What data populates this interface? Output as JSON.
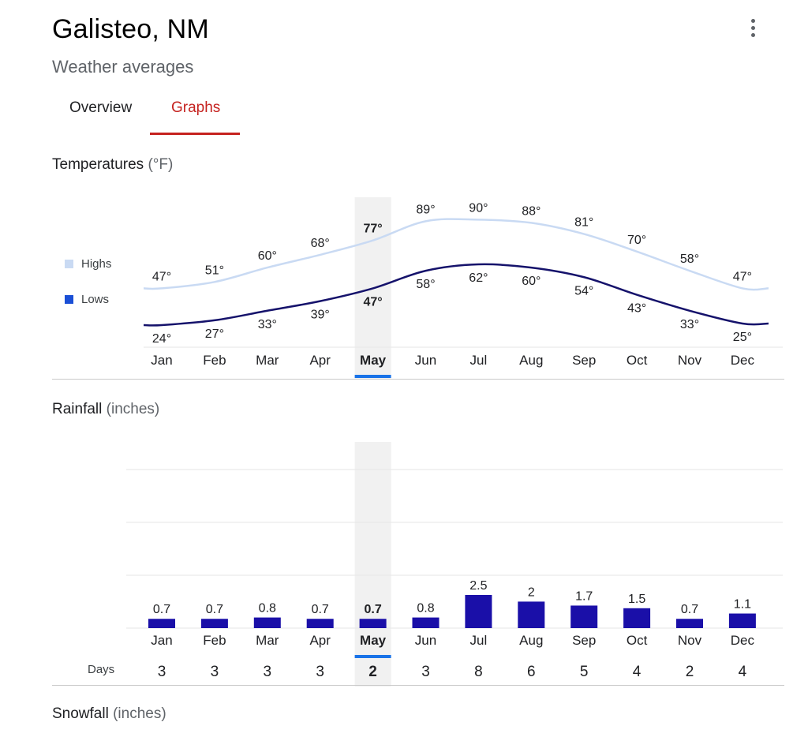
{
  "header": {
    "title": "Galisteo, NM",
    "subtitle": "Weather averages",
    "menu_icon": "more-vert-icon"
  },
  "tabs": [
    {
      "label": "Overview",
      "active": false
    },
    {
      "label": "Graphs",
      "active": true
    }
  ],
  "colors": {
    "highs": "#c9daf3",
    "lows": "#15126b",
    "bar": "#1a0fa8",
    "accent_red": "#c5221f",
    "selected_month": "#1a73e8"
  },
  "selected_month": "May",
  "temperature": {
    "heading": "Temperatures",
    "unit": "(°F)",
    "legend": {
      "highs": "Highs",
      "lows": "Lows"
    }
  },
  "rainfall": {
    "heading": "Rainfall",
    "unit": "(inches)",
    "days_label": "Days"
  },
  "snowfall": {
    "heading": "Snowfall",
    "unit": "(inches)"
  },
  "chart_data": [
    {
      "type": "line",
      "title": "Temperatures (°F)",
      "categories": [
        "Jan",
        "Feb",
        "Mar",
        "Apr",
        "May",
        "Jun",
        "Jul",
        "Aug",
        "Sep",
        "Oct",
        "Nov",
        "Dec"
      ],
      "series": [
        {
          "name": "Highs",
          "values": [
            47,
            51,
            60,
            68,
            77,
            89,
            90,
            88,
            81,
            70,
            58,
            47
          ],
          "labels": [
            "47°",
            "51°",
            "60°",
            "68°",
            "77°",
            "89°",
            "90°",
            "88°",
            "81°",
            "70°",
            "58°",
            "47°"
          ]
        },
        {
          "name": "Lows",
          "values": [
            24,
            27,
            33,
            39,
            47,
            58,
            62,
            60,
            54,
            43,
            33,
            25
          ],
          "labels": [
            "24°",
            "27°",
            "33°",
            "39°",
            "47°",
            "58°",
            "62°",
            "60°",
            "54°",
            "43°",
            "33°",
            "25°"
          ]
        }
      ],
      "legend": "left"
    },
    {
      "type": "bar",
      "title": "Rainfall (inches)",
      "categories": [
        "Jan",
        "Feb",
        "Mar",
        "Apr",
        "May",
        "Jun",
        "Jul",
        "Aug",
        "Sep",
        "Oct",
        "Nov",
        "Dec"
      ],
      "values": [
        0.7,
        0.7,
        0.8,
        0.7,
        0.7,
        0.8,
        2.5,
        2,
        1.7,
        1.5,
        0.7,
        1.1
      ],
      "labels": [
        "0.7",
        "0.7",
        "0.8",
        "0.7",
        "0.7",
        "0.8",
        "2.5",
        "2",
        "1.7",
        "1.5",
        "0.7",
        "1.1"
      ],
      "days": [
        3,
        3,
        3,
        3,
        2,
        3,
        8,
        6,
        5,
        4,
        2,
        4
      ],
      "ylim": [
        0,
        9
      ],
      "grid": true
    }
  ]
}
